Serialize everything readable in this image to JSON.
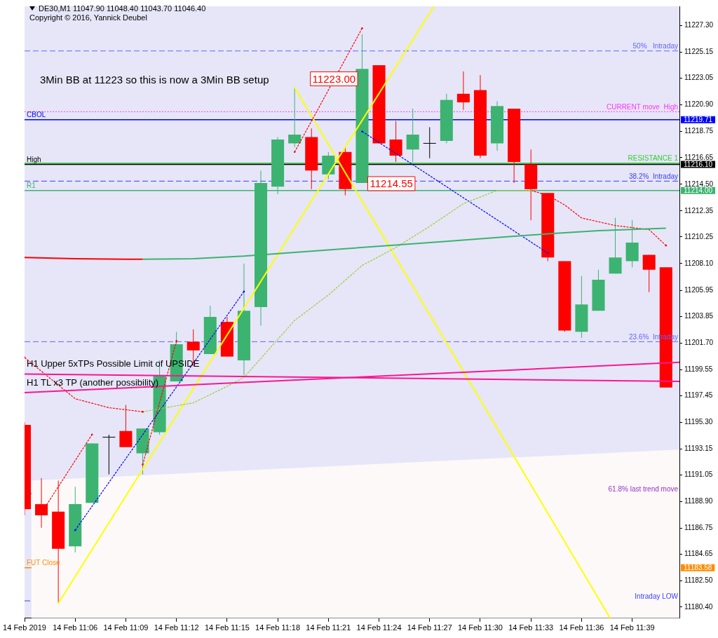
{
  "chart_data": {
    "type": "candlestick",
    "title": "DE30,M1  11047.90 11048.40 11043.70 11046.40",
    "subtitle": "Copyright © 2016, Yannick Deubel",
    "x": [
      "2019-02-14T11:03",
      "2019-02-14T11:04",
      "2019-02-14T11:05",
      "2019-02-14T11:06",
      "2019-02-14T11:07",
      "2019-02-14T11:08",
      "2019-02-14T11:09",
      "2019-02-14T11:10",
      "2019-02-14T11:11",
      "2019-02-14T11:12",
      "2019-02-14T11:13",
      "2019-02-14T11:14",
      "2019-02-14T11:15",
      "2019-02-14T11:16",
      "2019-02-14T11:17",
      "2019-02-14T11:18",
      "2019-02-14T11:19",
      "2019-02-14T11:20",
      "2019-02-14T11:21",
      "2019-02-14T11:22",
      "2019-02-14T11:23",
      "2019-02-14T11:24",
      "2019-02-14T11:25",
      "2019-02-14T11:26",
      "2019-02-14T11:27",
      "2019-02-14T11:28",
      "2019-02-14T11:29",
      "2019-02-14T11:30",
      "2019-02-14T11:31",
      "2019-02-14T11:32",
      "2019-02-14T11:33",
      "2019-02-14T11:34",
      "2019-02-14T11:35",
      "2019-02-14T11:36",
      "2019-02-14T11:37",
      "2019-02-14T11:38",
      "2019-02-14T11:39",
      "2019-02-14T11:40",
      "2019-02-14T11:41"
    ],
    "ohlc": [
      [
        11195.1,
        11195.3,
        11187.8,
        11188.3
      ],
      [
        11188.7,
        11190.8,
        11186.8,
        11187.8
      ],
      [
        11188.1,
        11190.6,
        11180.7,
        11185.1
      ],
      [
        11185.3,
        11190.1,
        11184.8,
        11188.7
      ],
      [
        11188.8,
        11193.6,
        11188.8,
        11193.6
      ],
      [
        11194.1,
        11194.3,
        11191.1,
        11194.1
      ],
      [
        11194.6,
        11196.7,
        11193.3,
        11193.3
      ],
      [
        11192.8,
        11194.8,
        11191.1,
        11194.8
      ],
      [
        11194.5,
        11200.3,
        11194.3,
        11199.1
      ],
      [
        11198.6,
        11202.6,
        11198.6,
        11201.6
      ],
      [
        11201.8,
        11202.8,
        11199.8,
        11201.1
      ],
      [
        11200.8,
        11204.7,
        11200.8,
        11203.8
      ],
      [
        11203.4,
        11203.8,
        11200.6,
        11200.6
      ],
      [
        11200.3,
        11208.1,
        11199.1,
        11204.3
      ],
      [
        11204.6,
        11215.6,
        11203.1,
        11214.6
      ],
      [
        11214.3,
        11218.3,
        11213.7,
        11218.1
      ],
      [
        11217.8,
        11222.3,
        11217.5,
        11218.5
      ],
      [
        11218.3,
        11219.0,
        11214.1,
        11215.6
      ],
      [
        11215.3,
        11217.1,
        11214.9,
        11216.8
      ],
      [
        11217.1,
        11217.5,
        11213.6,
        11214.1
      ],
      [
        11214.6,
        11226.6,
        11214.6,
        11223.8
      ],
      [
        11224.1,
        11224.1,
        11217.8,
        11217.8
      ],
      [
        11218.1,
        11219.6,
        11216.3,
        11216.8
      ],
      [
        11217.3,
        11220.6,
        11216.3,
        11218.5
      ],
      [
        11217.8,
        11219.1,
        11216.6,
        11217.8
      ],
      [
        11218.0,
        11221.8,
        11217.8,
        11221.3
      ],
      [
        11221.8,
        11223.6,
        11220.5,
        11221.1
      ],
      [
        11222.1,
        11223.3,
        11216.6,
        11216.8
      ],
      [
        11217.8,
        11221.2,
        11217.2,
        11220.8
      ],
      [
        11220.6,
        11220.6,
        11214.6,
        11216.3
      ],
      [
        11216.1,
        11217.3,
        11211.6,
        11214.1
      ],
      [
        11213.8,
        11213.8,
        11208.3,
        11208.6
      ],
      [
        11208.3,
        11208.3,
        11202.6,
        11202.7
      ],
      [
        11202.6,
        11207.1,
        11202.1,
        11204.8
      ],
      [
        11204.3,
        11207.6,
        11204.3,
        11206.8
      ],
      [
        11207.3,
        11211.8,
        11207.3,
        11208.6
      ],
      [
        11208.3,
        11211.6,
        11207.8,
        11209.8
      ],
      [
        11208.8,
        11208.8,
        11205.8,
        11207.6
      ],
      [
        11207.8,
        11207.8,
        11198.1,
        11198.1
      ]
    ],
    "colors": [
      "#ff0000",
      "#ff0000",
      "#ff0000",
      "#3cb371",
      "#3cb371",
      "#000000",
      "#ff0000",
      "#3cb371",
      "#3cb371",
      "#3cb371",
      "#ff0000",
      "#3cb371",
      "#ff0000",
      "#3cb371",
      "#3cb371",
      "#3cb371",
      "#3cb371",
      "#ff0000",
      "#3cb371",
      "#ff0000",
      "#3cb371",
      "#ff0000",
      "#ff0000",
      "#3cb371",
      "#000000",
      "#3cb371",
      "#ff0000",
      "#ff0000",
      "#3cb371",
      "#ff0000",
      "#ff0000",
      "#ff0000",
      "#ff0000",
      "#3cb371",
      "#3cb371",
      "#3cb371",
      "#3cb371",
      "#ff0000",
      "#ff0000"
    ],
    "series": [
      {
        "type": "area",
        "color": "#fdf9f9",
        "x": [
          "2019-02-14T11:03:24",
          "2019-02-14T11:41:48"
        ],
        "values": [
          11190.6,
          11193.1
        ]
      },
      {
        "type": "line",
        "color": "#ff1493",
        "name": "H1 Upper 5xTPs Possible Limit of UPSIDE",
        "line_style": "solid",
        "x": [
          "2019-02-14T11:03",
          "2019-02-14T11:41:48"
        ],
        "values": [
          11199.2,
          11198.6
        ]
      },
      {
        "type": "line",
        "color": "#ff1493",
        "name": "H1 TL x3 TP (another possibility)",
        "line_style": "solid",
        "x": [
          "2019-02-14T11:03",
          "2019-02-14T11:41:48"
        ],
        "values": [
          11197.7,
          11200.14
        ]
      },
      {
        "type": "line",
        "color": "#ff0000",
        "line_style": "solid",
        "x": [
          "2019-02-14T11:03",
          "2019-02-14T11:06",
          "2019-02-14T11:09",
          "2019-02-14T11:10"
        ],
        "values": [
          11208.6,
          11208.5,
          11208.45,
          11208.45
        ]
      },
      {
        "type": "line",
        "color": "#3cb371",
        "line_style": "solid",
        "x": [
          "2019-02-14T11:10",
          "2019-02-14T11:13",
          "2019-02-14T11:16",
          "2019-02-14T11:19",
          "2019-02-14T11:22",
          "2019-02-14T11:25",
          "2019-02-14T11:28",
          "2019-02-14T11:31",
          "2019-02-14T11:34",
          "2019-02-14T11:37",
          "2019-02-14T11:41"
        ],
        "values": [
          11208.45,
          11208.5,
          11208.7,
          11209.0,
          11209.3,
          11209.6,
          11209.9,
          11210.2,
          11210.5,
          11210.75,
          11210.95
        ]
      },
      {
        "type": "line",
        "color": "#ff0000",
        "line_style": "dotted",
        "x": [
          "2019-02-14T11:03",
          "2019-02-14T11:06",
          "2019-02-14T11:08",
          "2019-02-14T11:10"
        ],
        "values": [
          11200.53,
          11197.2,
          11196.48,
          11196.15
        ]
      },
      {
        "type": "line",
        "color": "#9acd32",
        "line_style": "dotted",
        "x": [
          "2019-02-14T11:10",
          "2019-02-14T11:13",
          "2019-02-14T11:15",
          "2019-02-14T11:16",
          "2019-02-14T11:19",
          "2019-02-14T11:21",
          "2019-02-14T11:23",
          "2019-02-14T11:25",
          "2019-02-14T11:27",
          "2019-02-14T11:29",
          "2019-02-14T11:31",
          "2019-02-14T11:33"
        ],
        "values": [
          11196.15,
          11196.87,
          11198.2,
          11198.92,
          11203.52,
          11205.57,
          11207.95,
          11209.4,
          11211.1,
          11212.94,
          11214.0,
          11214.0
        ]
      },
      {
        "type": "line",
        "color": "#ff0000",
        "line_style": "dotted",
        "x": [
          "2019-02-14T11:33",
          "2019-02-14T11:34",
          "2019-02-14T11:35",
          "2019-02-14T11:36",
          "2019-02-14T11:38",
          "2019-02-14T11:40",
          "2019-02-14T11:41"
        ],
        "values": [
          11214.0,
          11213.6,
          11212.83,
          11211.78,
          11211.17,
          11210.84,
          11209.56
        ]
      },
      {
        "type": "line",
        "color": "#0000ff",
        "line_style": "dotted",
        "x": [
          "2019-02-14T11:06",
          "2019-02-14T11:16"
        ],
        "values": [
          11186.6,
          11205.85
        ]
      },
      {
        "type": "line",
        "color": "#0000ff",
        "line_style": "dotted",
        "x": [
          "2019-02-14T11:23",
          "2019-02-14T11:34"
        ],
        "values": [
          11218.76,
          11208.95
        ]
      },
      {
        "type": "line",
        "color": "#ff0000",
        "line_style": "dotted",
        "x": [
          "2019-02-14T11:04",
          "2019-02-14T11:07"
        ],
        "values": [
          11188.0,
          11194.32
        ]
      },
      {
        "type": "line",
        "color": "#ff0000",
        "line_style": "dotted",
        "x": [
          "2019-02-14T11:10",
          "2019-02-14T11:12"
        ],
        "values": [
          11191.88,
          11201.86
        ]
      },
      {
        "type": "line",
        "color": "#ff0000",
        "line_style": "dotted",
        "x": [
          "2019-02-14T11:19",
          "2019-02-14T11:23"
        ],
        "values": [
          11217.1,
          11227.08
        ]
      },
      {
        "type": "line",
        "color": "#ffff00",
        "line_style": "solid",
        "x": [
          "2019-02-14T11:05",
          "2019-02-14T11:27:15"
        ],
        "values": [
          11180.7,
          11228.85
        ]
      },
      {
        "type": "line",
        "color": "#ffff00",
        "line_style": "solid",
        "x": [
          "2019-02-14T11:19",
          "2019-02-14T11:37:42"
        ],
        "values": [
          11222.3,
          11179.5
        ]
      }
    ],
    "xlim": [
      "2019-02-14T11:03",
      "2019-02-14T11:41:48"
    ],
    "xticks": [
      {
        "value": "2019-02-14T11:03",
        "label": "14 Feb 2019"
      },
      {
        "value": "2019-02-14T11:06",
        "label": "14 Feb 11:06"
      },
      {
        "value": "2019-02-14T11:09",
        "label": "14 Feb 11:09"
      },
      {
        "value": "2019-02-14T11:12",
        "label": "14 Feb 11:12"
      },
      {
        "value": "2019-02-14T11:15",
        "label": "14 Feb 11:15"
      },
      {
        "value": "2019-02-14T11:18",
        "label": "14 Feb 11:18"
      },
      {
        "value": "2019-02-14T11:21",
        "label": "14 Feb 11:21"
      },
      {
        "value": "2019-02-14T11:24",
        "label": "14 Feb 11:24"
      },
      {
        "value": "2019-02-14T11:27",
        "label": "14 Feb 11:27"
      },
      {
        "value": "2019-02-14T11:30",
        "label": "14 Feb 11:30"
      },
      {
        "value": "2019-02-14T11:33",
        "label": "14 Feb 11:33"
      },
      {
        "value": "2019-02-14T11:36",
        "label": "14 Feb 11:36"
      },
      {
        "value": "2019-02-14T11:39",
        "label": "14 Feb 11:39"
      }
    ],
    "ylim": [
      11179.5,
      11228.85
    ],
    "yticks": [
      {
        "value": 11180.4,
        "label": "11180.40"
      },
      {
        "value": 11182.5,
        "label": "11182.50"
      },
      {
        "value": 11184.65,
        "label": "11184.65"
      },
      {
        "value": 11186.75,
        "label": "11186.75"
      },
      {
        "value": 11188.9,
        "label": "11188.90"
      },
      {
        "value": 11191.05,
        "label": "11191.05"
      },
      {
        "value": 11193.15,
        "label": "11193.15"
      },
      {
        "value": 11195.3,
        "label": "11195.30"
      },
      {
        "value": 11197.45,
        "label": "11197.45"
      },
      {
        "value": 11199.55,
        "label": "11199.55"
      },
      {
        "value": 11201.7,
        "label": "11201.70"
      },
      {
        "value": 11203.85,
        "label": "11203.85"
      },
      {
        "value": 11205.95,
        "label": "11205.95"
      },
      {
        "value": 11208.1,
        "label": "11208.10"
      },
      {
        "value": 11210.25,
        "label": "11210.25"
      },
      {
        "value": 11212.35,
        "label": "11212.35"
      },
      {
        "value": 11214.5,
        "label": "11214.50"
      },
      {
        "value": 11216.65,
        "label": "11216.65"
      },
      {
        "value": 11218.75,
        "label": "11218.75"
      },
      {
        "value": 11220.9,
        "label": "11220.90"
      },
      {
        "value": 11223.05,
        "label": "11223.05"
      },
      {
        "value": 11225.15,
        "label": "11225.15"
      },
      {
        "value": 11227.3,
        "label": "11227.30"
      }
    ],
    "ref_lines": [
      {
        "axis": "y",
        "value": 11225.25,
        "label": "50%   Intraday",
        "color": "#6464ff",
        "line_style": "dashed"
      },
      {
        "axis": "y",
        "value": 11220.35,
        "label": "CURRENT move  High",
        "color": "#ff33ff",
        "line_style": "dotted"
      },
      {
        "axis": "y",
        "value": 11219.71,
        "label": "CBOL",
        "color": "#0000ff",
        "line_style": "solid"
      },
      {
        "axis": "y",
        "value": 11216.2,
        "label": "RESISTANCE 1",
        "color": "#32cd32",
        "line_style": "solid"
      },
      {
        "axis": "y",
        "value": 11216.1,
        "label": "High",
        "color": "#000000",
        "line_style": "solid"
      },
      {
        "axis": "y",
        "value": 11214.75,
        "label": "38.2%  Intraday",
        "color": "#3c3cff",
        "line_style": "dashed"
      },
      {
        "axis": "y",
        "value": 11214.0,
        "label": "R1",
        "color": "#3cb371",
        "line_style": "solid"
      },
      {
        "axis": "y",
        "value": 11201.8,
        "label": "23.6%  Intraday",
        "color": "#6464ff",
        "line_style": "dashed"
      },
      {
        "axis": "y",
        "value": 11189.55,
        "label": "61.8% last trend move",
        "color": "#9932cc",
        "line_style": "solid"
      },
      {
        "axis": "y",
        "value": 11183.58,
        "label": "FUT Close",
        "color": "#ff8c00",
        "line_style": "solid"
      },
      {
        "axis": "y",
        "value": 11180.9,
        "label": "Intraday LOW",
        "color": "#3c3cff",
        "line_style": "dashed"
      }
    ],
    "annotations": [
      "3Min BB at 11223 so this is now a 3Min BB setup",
      {
        "text": "11223.00",
        "x": "2019-02-14T11:21:20",
        "y": 11223
      },
      {
        "text": "11214.55",
        "x": "2019-02-14T11:24:44",
        "y": 11214.55
      },
      {
        "text": "11219.71",
        "x": "2019-02-14T11:41:48",
        "y": 11219.71
      },
      {
        "text": "11216.10",
        "x": "2019-02-14T11:41:48",
        "y": 11216.1
      },
      {
        "text": "11214.00",
        "x": "2019-02-14T11:41:48",
        "y": 11214.0
      },
      {
        "text": "11183.58",
        "x": "2019-02-14T11:41:48",
        "y": 11183.58
      }
    ],
    "legend": false
  }
}
